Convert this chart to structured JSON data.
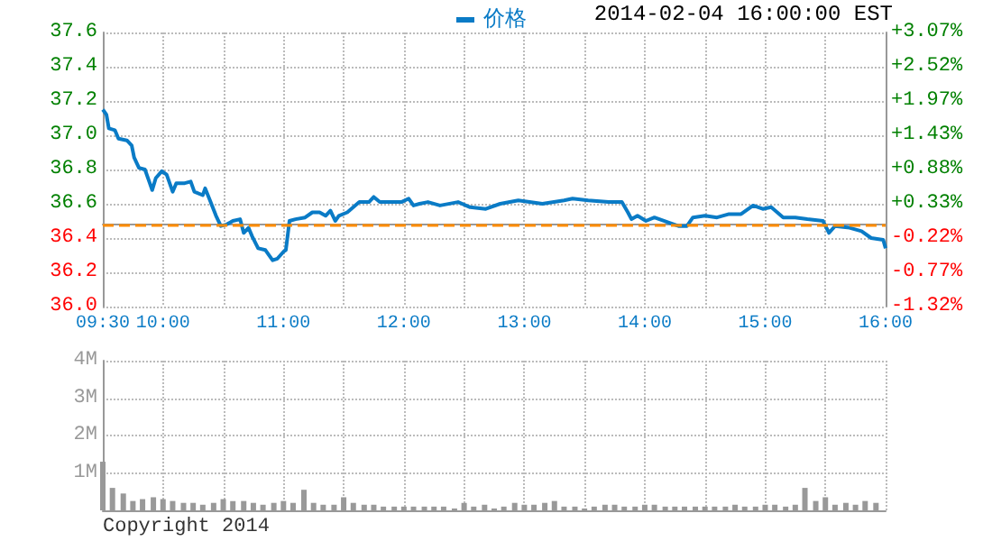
{
  "chart_data": [
    {
      "type": "line",
      "subtitle": "2014-02-04 16:00:00 EST",
      "legend": "top",
      "grid": true,
      "x": [
        9.5,
        9.53,
        9.55,
        9.6,
        9.63,
        9.7,
        9.74,
        9.76,
        9.8,
        9.85,
        9.89,
        9.91,
        9.94,
        9.99,
        10.03,
        10.08,
        10.11,
        10.18,
        10.23,
        10.26,
        10.33,
        10.35,
        10.39,
        10.44,
        10.48,
        10.53,
        10.58,
        10.64,
        10.67,
        10.71,
        10.74,
        10.79,
        10.85,
        10.91,
        10.95,
        11.0,
        11.02,
        11.05,
        11.1,
        11.18,
        11.24,
        11.3,
        11.35,
        11.39,
        11.43,
        11.46,
        11.53,
        11.58,
        11.63,
        11.71,
        11.75,
        11.8,
        11.9,
        11.98,
        12.04,
        12.08,
        12.13,
        12.2,
        12.3,
        12.45,
        12.55,
        12.68,
        12.8,
        12.95,
        13.15,
        13.33,
        13.4,
        13.53,
        13.7,
        13.81,
        13.86,
        13.89,
        13.94,
        14.01,
        14.08,
        14.2,
        14.28,
        14.35,
        14.4,
        14.5,
        14.6,
        14.7,
        14.8,
        14.9,
        14.98,
        15.05,
        15.15,
        15.25,
        15.35,
        15.48,
        15.53,
        15.58,
        15.7,
        15.8,
        15.88,
        15.98,
        16.0
      ],
      "series": [
        {
          "name": "价格",
          "color": "#0a7bc6",
          "values": [
            37.15,
            37.12,
            37.04,
            37.03,
            36.98,
            36.97,
            36.94,
            36.87,
            36.81,
            36.8,
            36.72,
            36.68,
            36.75,
            36.79,
            36.77,
            36.67,
            36.72,
            36.72,
            36.73,
            36.67,
            36.65,
            36.69,
            36.62,
            36.53,
            36.47,
            36.48,
            36.5,
            36.51,
            36.43,
            36.46,
            36.41,
            36.34,
            36.33,
            36.27,
            36.28,
            36.32,
            36.33,
            36.5,
            36.51,
            36.52,
            36.55,
            36.55,
            36.53,
            36.56,
            36.5,
            36.53,
            36.55,
            36.58,
            36.61,
            36.61,
            36.64,
            36.61,
            36.61,
            36.61,
            36.63,
            36.59,
            36.6,
            36.61,
            36.59,
            36.61,
            36.58,
            36.57,
            36.6,
            36.62,
            36.6,
            36.62,
            36.63,
            36.62,
            36.61,
            36.61,
            36.55,
            36.51,
            36.53,
            36.5,
            36.52,
            36.49,
            36.47,
            36.47,
            36.52,
            36.53,
            36.52,
            36.54,
            36.54,
            36.59,
            36.57,
            36.58,
            36.52,
            36.52,
            36.51,
            36.5,
            36.43,
            36.47,
            36.46,
            36.44,
            36.4,
            36.39,
            36.34
          ]
        }
      ],
      "xlim": [
        9.5,
        16
      ],
      "xticks": [
        {
          "value": 9.5,
          "label": "09:30"
        },
        {
          "value": 10,
          "label": "10:00"
        },
        {
          "value": 10.5,
          "label": null
        },
        {
          "value": 11,
          "label": "11:00"
        },
        {
          "value": 11.5,
          "label": null
        },
        {
          "value": 12,
          "label": "12:00"
        },
        {
          "value": 12.5,
          "label": null
        },
        {
          "value": 13,
          "label": "13:00"
        },
        {
          "value": 13.5,
          "label": null
        },
        {
          "value": 14,
          "label": "14:00"
        },
        {
          "value": 14.5,
          "label": null
        },
        {
          "value": 15,
          "label": "15:00"
        },
        {
          "value": 15.5,
          "label": null
        },
        {
          "value": 16,
          "label": "16:00"
        }
      ],
      "ylim": [
        36.0,
        37.6
      ],
      "yticks": [
        {
          "value": 36.0,
          "label": "36.0"
        },
        {
          "value": 36.2,
          "label": "36.2"
        },
        {
          "value": 36.4,
          "label": "36.4"
        },
        {
          "value": 36.6,
          "label": "36.6"
        },
        {
          "value": 36.8,
          "label": "36.8"
        },
        {
          "value": 37.0,
          "label": "37.0"
        },
        {
          "value": 37.2,
          "label": "37.2"
        },
        {
          "value": 37.4,
          "label": "37.4"
        },
        {
          "value": 37.6,
          "label": "37.6"
        }
      ],
      "y2lim": [
        -1.32,
        3.07
      ],
      "y2ticks": [
        {
          "value": -1.32,
          "label": "-1.32%"
        },
        {
          "value": -0.77,
          "label": "-0.77%"
        },
        {
          "value": -0.22,
          "label": "-0.22%"
        },
        {
          "value": 0.33,
          "label": "+0.33%"
        },
        {
          "value": 0.88,
          "label": "+0.88%"
        },
        {
          "value": 1.43,
          "label": "+1.43%"
        },
        {
          "value": 1.97,
          "label": "+1.97%"
        },
        {
          "value": 2.52,
          "label": "+2.52%"
        },
        {
          "value": 3.07,
          "label": "+3.07%"
        }
      ],
      "ref_lines": [
        {
          "axis": "y",
          "value": 36.48,
          "color": "#ff8c00",
          "line_style": "dashed"
        }
      ]
    },
    {
      "type": "bar",
      "grid": true,
      "tick_labels": "y",
      "annotations": [
        "Copyright 2014"
      ],
      "x": [
        9.5,
        9.58,
        9.67,
        9.75,
        9.83,
        9.92,
        10,
        10.08,
        10.17,
        10.25,
        10.33,
        10.42,
        10.5,
        10.58,
        10.67,
        10.75,
        10.83,
        10.92,
        11,
        11.08,
        11.17,
        11.25,
        11.33,
        11.42,
        11.5,
        11.58,
        11.67,
        11.75,
        11.83,
        11.92,
        12,
        12.08,
        12.17,
        12.25,
        12.33,
        12.42,
        12.5,
        12.58,
        12.67,
        12.75,
        12.83,
        12.92,
        13,
        13.08,
        13.17,
        13.25,
        13.33,
        13.42,
        13.5,
        13.58,
        13.67,
        13.75,
        13.83,
        13.92,
        14,
        14.08,
        14.17,
        14.25,
        14.33,
        14.42,
        14.5,
        14.58,
        14.67,
        14.75,
        14.83,
        14.92,
        15,
        15.08,
        15.17,
        15.25,
        15.33,
        15.42,
        15.5,
        15.58,
        15.67,
        15.75,
        15.83,
        15.92
      ],
      "series": [
        {
          "color": "#999999",
          "values": [
            1.3,
            0.6,
            0.45,
            0.25,
            0.3,
            0.35,
            0.3,
            0.25,
            0.2,
            0.2,
            0.15,
            0.2,
            0.3,
            0.25,
            0.25,
            0.2,
            0.15,
            0.2,
            0.25,
            0.2,
            0.55,
            0.2,
            0.15,
            0.15,
            0.35,
            0.2,
            0.15,
            0.15,
            0.1,
            0.1,
            0.1,
            0.1,
            0.1,
            0.1,
            0.1,
            0.05,
            0.2,
            0.1,
            0.15,
            0.05,
            0.1,
            0.2,
            0.15,
            0.15,
            0.2,
            0.25,
            0.1,
            0.1,
            0.05,
            0.1,
            0.15,
            0.15,
            0.1,
            0.1,
            0.15,
            0.15,
            0.1,
            0.1,
            0.1,
            0.1,
            0.1,
            0.1,
            0.1,
            0.15,
            0.1,
            0.1,
            0.15,
            0.15,
            0.1,
            0.15,
            0.6,
            0.25,
            0.35,
            0.15,
            0.2,
            0.15,
            0.25,
            0.2
          ]
        }
      ],
      "xlim": [
        9.5,
        16
      ],
      "xticks": [
        {
          "value": 9.5,
          "label": null
        },
        {
          "value": 10,
          "label": null
        },
        {
          "value": 10.5,
          "label": null
        },
        {
          "value": 11,
          "label": null
        },
        {
          "value": 11.5,
          "label": null
        },
        {
          "value": 12,
          "label": null
        },
        {
          "value": 12.5,
          "label": null
        },
        {
          "value": 13,
          "label": null
        },
        {
          "value": 13.5,
          "label": null
        },
        {
          "value": 14,
          "label": null
        },
        {
          "value": 14.5,
          "label": null
        },
        {
          "value": 15,
          "label": null
        },
        {
          "value": 15.5,
          "label": null
        },
        {
          "value": 16,
          "label": null
        }
      ],
      "ylim": [
        0,
        4
      ],
      "yticks": [
        {
          "value": 1,
          "label": "1M"
        },
        {
          "value": 2,
          "label": "2M"
        },
        {
          "value": 3,
          "label": "3M"
        },
        {
          "value": 4,
          "label": "4M"
        }
      ]
    }
  ]
}
